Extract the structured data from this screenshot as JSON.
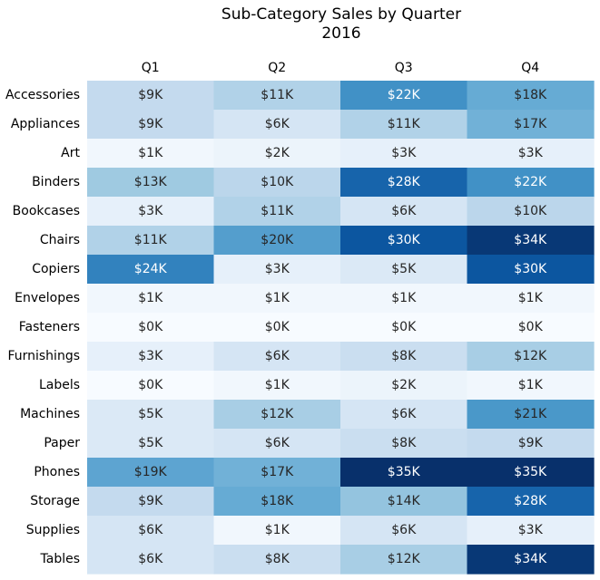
{
  "chart_data": {
    "type": "heatmap",
    "title": "Sub-Category Sales by Quarter",
    "subtitle": "2016",
    "xlabel": "",
    "ylabel": "",
    "columns": [
      "Q1",
      "Q2",
      "Q3",
      "Q4"
    ],
    "rows": [
      "Accessories",
      "Appliances",
      "Art",
      "Binders",
      "Bookcases",
      "Chairs",
      "Copiers",
      "Envelopes",
      "Fasteners",
      "Furnishings",
      "Labels",
      "Machines",
      "Paper",
      "Phones",
      "Storage",
      "Supplies",
      "Tables"
    ],
    "values": [
      [
        9,
        11,
        22,
        18
      ],
      [
        9,
        6,
        11,
        17
      ],
      [
        1,
        2,
        3,
        3
      ],
      [
        13,
        10,
        28,
        22
      ],
      [
        3,
        11,
        6,
        10
      ],
      [
        11,
        20,
        30,
        34
      ],
      [
        24,
        3,
        5,
        30
      ],
      [
        1,
        1,
        1,
        1
      ],
      [
        0,
        0,
        0,
        0
      ],
      [
        3,
        6,
        8,
        12
      ],
      [
        0,
        1,
        2,
        1
      ],
      [
        5,
        12,
        6,
        21
      ],
      [
        5,
        6,
        8,
        9
      ],
      [
        19,
        17,
        35,
        35
      ],
      [
        9,
        18,
        14,
        28
      ],
      [
        6,
        1,
        6,
        3
      ],
      [
        6,
        8,
        12,
        34
      ]
    ],
    "labels": [
      [
        "$9K",
        "$11K",
        "$22K",
        "$18K"
      ],
      [
        "$9K",
        "$6K",
        "$11K",
        "$17K"
      ],
      [
        "$1K",
        "$2K",
        "$3K",
        "$3K"
      ],
      [
        "$13K",
        "$10K",
        "$28K",
        "$22K"
      ],
      [
        "$3K",
        "$11K",
        "$6K",
        "$10K"
      ],
      [
        "$11K",
        "$20K",
        "$30K",
        "$34K"
      ],
      [
        "$24K",
        "$3K",
        "$5K",
        "$30K"
      ],
      [
        "$1K",
        "$1K",
        "$1K",
        "$1K"
      ],
      [
        "$0K",
        "$0K",
        "$0K",
        "$0K"
      ],
      [
        "$3K",
        "$6K",
        "$8K",
        "$12K"
      ],
      [
        "$0K",
        "$1K",
        "$2K",
        "$1K"
      ],
      [
        "$5K",
        "$12K",
        "$6K",
        "$21K"
      ],
      [
        "$5K",
        "$6K",
        "$8K",
        "$9K"
      ],
      [
        "$19K",
        "$17K",
        "$35K",
        "$35K"
      ],
      [
        "$9K",
        "$18K",
        "$14K",
        "$28K"
      ],
      [
        "$6K",
        "$1K",
        "$6K",
        "$3K"
      ],
      [
        "$6K",
        "$8K",
        "$12K",
        "$34K"
      ]
    ],
    "units": "thousands of dollars",
    "colormap": "Blues",
    "value_range": [
      0,
      35
    ],
    "colorbar": false,
    "column_labels_position": "top",
    "grid": false,
    "colors": {
      "low": "#f7fbff",
      "high": "#08306b",
      "text_dark": "#262626",
      "text_light": "#ffffff"
    }
  }
}
